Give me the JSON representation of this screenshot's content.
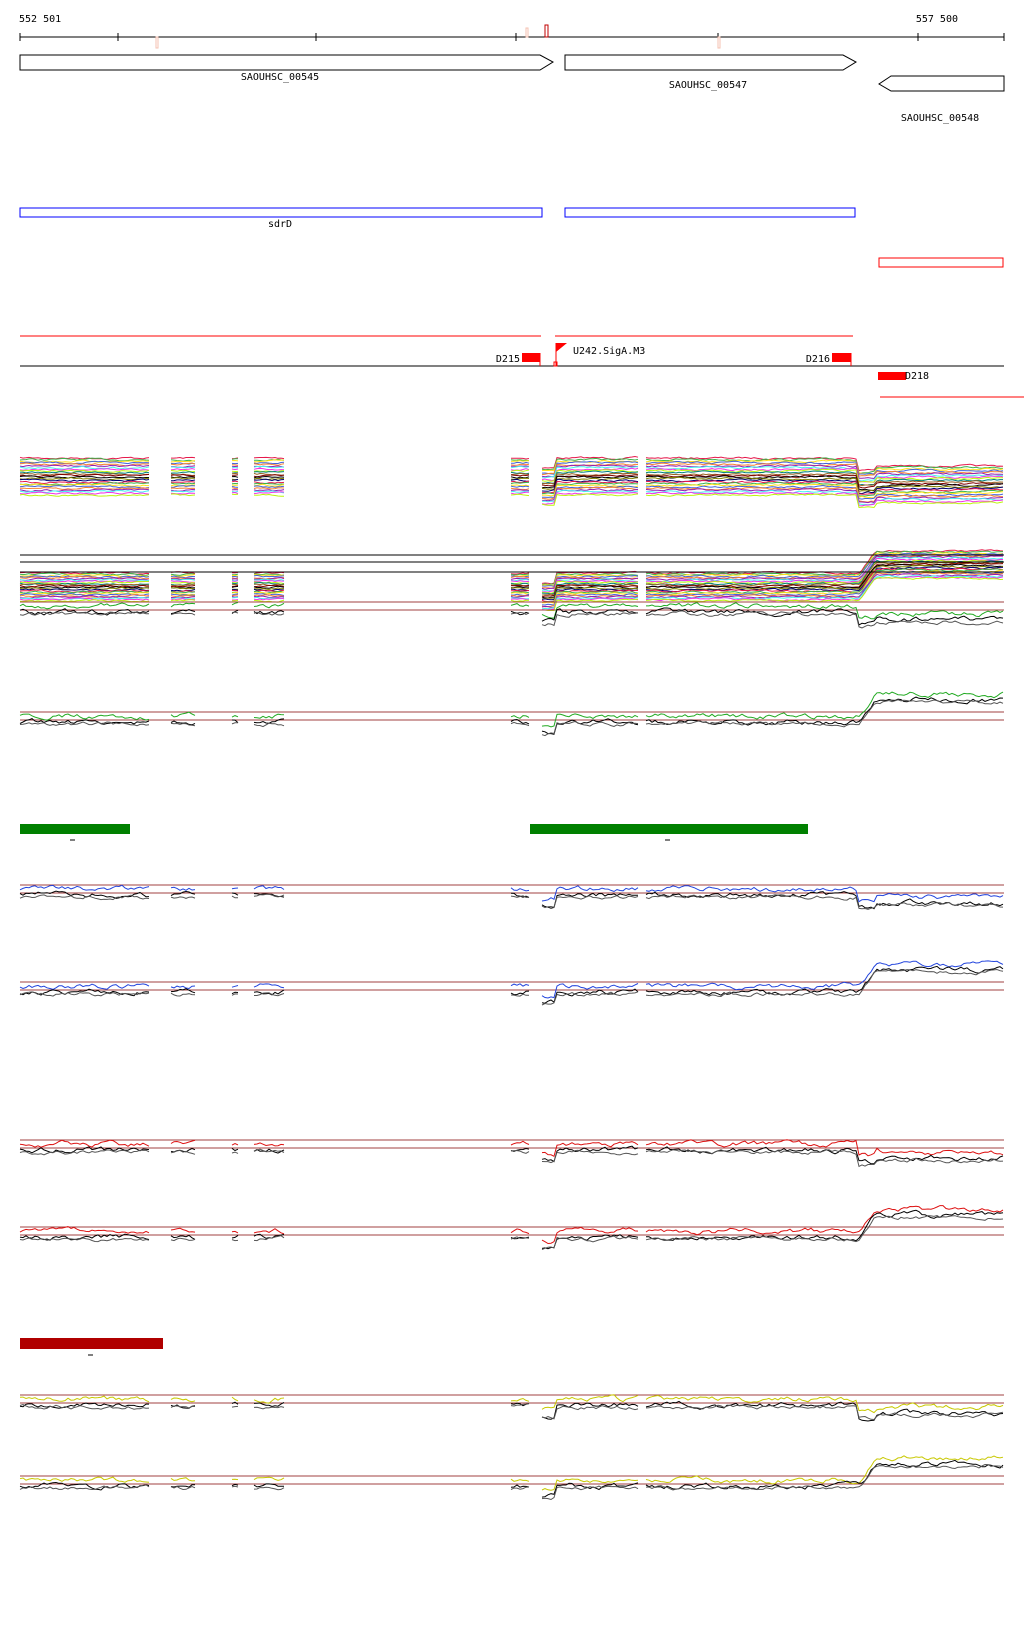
{
  "coords": {
    "start": "552 501",
    "end": "557 500"
  },
  "genes": [
    {
      "name": "SAOUHSC_00545",
      "strand": "+"
    },
    {
      "name": "SAOUHSC_00547",
      "strand": "+"
    },
    {
      "name": "SAOUHSC_00548",
      "strand": "-"
    }
  ],
  "feature_label": "sdrD",
  "annotations": {
    "d215": "D215",
    "u242": "U242.SigA.M3",
    "d216": "D216",
    "d218": "D218"
  },
  "colors": {
    "feature_blue": "#0000ff",
    "feature_red": "#ff0000",
    "condition_green": "#008000",
    "condition_dark_red": "#b00000",
    "series_green": "#22aa22",
    "series_blue": "#2244dd",
    "series_red": "#dd1111",
    "series_yellow": "#c8c800",
    "threshold": "#a04040"
  }
}
